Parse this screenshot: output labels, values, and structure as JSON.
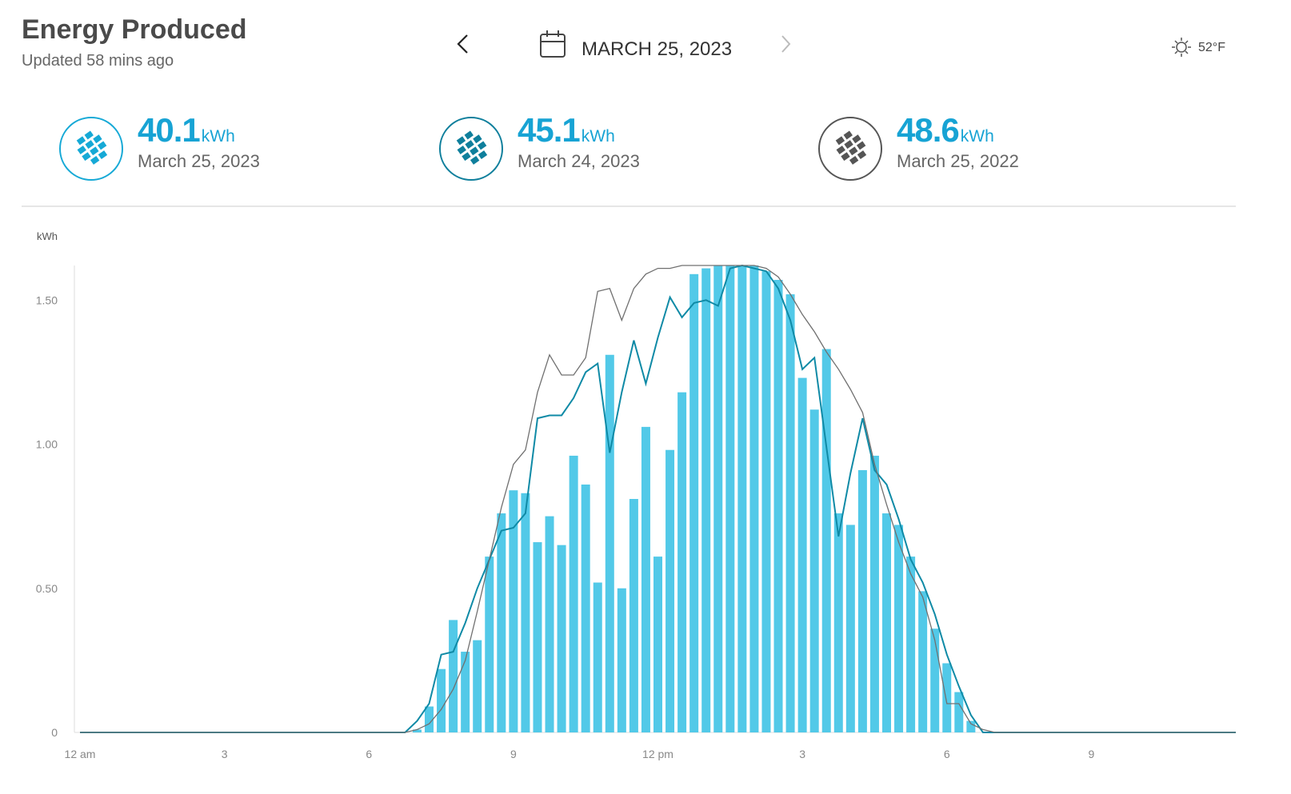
{
  "header": {
    "title": "Energy Produced",
    "subtitle": "Updated 58 mins ago",
    "date": "MARCH 25, 2023",
    "temperature": "52°F"
  },
  "chart_data": {
    "type": "bar",
    "ylabel": "kWh",
    "unit": "kWh",
    "xlim": [
      0,
      24
    ],
    "ylim": [
      0,
      1.62
    ],
    "xticks": [
      {
        "value": 0,
        "label": "12 am"
      },
      3,
      6,
      9,
      {
        "value": 12,
        "label": "12 pm"
      },
      {
        "value": 15,
        "label": "3"
      },
      {
        "value": 18,
        "label": "6"
      },
      {
        "value": 21,
        "label": "9"
      }
    ],
    "yticks": [
      0,
      {
        "value": 0.5,
        "label": "0.50"
      },
      {
        "value": 1,
        "label": "1.00"
      },
      {
        "value": 1.5,
        "label": "1.50"
      }
    ],
    "grid": false,
    "series": [
      {
        "name": "March 25, 2023",
        "type": "bar",
        "color": "#52c9e8",
        "total": 40.1,
        "x": [
          7,
          7.25,
          7.5,
          7.75,
          8,
          8.25,
          8.5,
          8.75,
          9,
          9.25,
          9.5,
          9.75,
          10,
          10.25,
          10.5,
          10.75,
          11,
          11.25,
          11.5,
          11.75,
          12,
          12.25,
          12.5,
          12.75,
          13,
          13.25,
          13.5,
          13.75,
          14,
          14.25,
          14.5,
          14.75,
          15,
          15.25,
          15.5,
          15.75,
          16,
          16.25,
          16.5,
          16.75,
          17,
          17.25,
          17.5,
          17.75,
          18,
          18.25,
          18.5
        ],
        "values": [
          0.01,
          0.09,
          0.22,
          0.39,
          0.28,
          0.32,
          0.61,
          0.76,
          0.84,
          0.83,
          0.66,
          0.75,
          0.65,
          0.96,
          0.86,
          0.52,
          1.31,
          0.5,
          0.81,
          1.06,
          0.61,
          0.98,
          1.18,
          1.59,
          1.61,
          1.62,
          1.62,
          1.62,
          1.62,
          1.6,
          1.57,
          1.52,
          1.23,
          1.12,
          1.33,
          0.76,
          0.72,
          0.91,
          0.96,
          0.76,
          0.72,
          0.61,
          0.49,
          0.36,
          0.24,
          0.14,
          0.04
        ]
      },
      {
        "name": "March 24, 2023",
        "type": "line",
        "color": "#0f8aa6",
        "total": 45.1,
        "x": [
          0,
          6.75,
          7,
          7.25,
          7.5,
          7.75,
          8,
          8.25,
          8.5,
          8.75,
          9,
          9.25,
          9.5,
          9.75,
          10,
          10.25,
          10.5,
          10.75,
          11,
          11.25,
          11.5,
          11.75,
          12,
          12.25,
          12.5,
          12.75,
          13,
          13.25,
          13.5,
          13.75,
          14,
          14.25,
          14.5,
          14.75,
          15,
          15.25,
          15.5,
          15.75,
          16,
          16.25,
          16.5,
          16.75,
          17,
          17.25,
          17.5,
          17.75,
          18,
          18.25,
          18.5,
          18.75,
          19,
          24
        ],
        "values": [
          0,
          0,
          0.04,
          0.1,
          0.27,
          0.28,
          0.38,
          0.5,
          0.6,
          0.7,
          0.71,
          0.76,
          1.09,
          1.1,
          1.1,
          1.16,
          1.25,
          1.28,
          0.97,
          1.18,
          1.36,
          1.21,
          1.37,
          1.51,
          1.44,
          1.49,
          1.5,
          1.48,
          1.61,
          1.62,
          1.61,
          1.6,
          1.54,
          1.43,
          1.26,
          1.3,
          0.99,
          0.68,
          0.9,
          1.09,
          0.91,
          0.86,
          0.74,
          0.6,
          0.52,
          0.41,
          0.27,
          0.16,
          0.06,
          0,
          0,
          0
        ]
      },
      {
        "name": "March 25, 2022",
        "type": "line",
        "color": "#707070",
        "total": 48.6,
        "x": [
          0,
          6.75,
          7,
          7.25,
          7.5,
          7.75,
          8,
          8.25,
          8.5,
          8.75,
          9,
          9.25,
          9.5,
          9.75,
          10,
          10.25,
          10.5,
          10.75,
          11,
          11.25,
          11.5,
          11.75,
          12,
          12.25,
          12.5,
          12.75,
          13,
          13.25,
          13.5,
          13.75,
          14,
          14.25,
          14.5,
          14.75,
          15,
          15.25,
          15.5,
          15.75,
          16,
          16.25,
          16.5,
          16.75,
          17,
          17.25,
          17.5,
          17.75,
          18,
          18.25,
          18.5,
          18.75,
          19,
          24
        ],
        "values": [
          0,
          0,
          0.01,
          0.03,
          0.08,
          0.15,
          0.25,
          0.42,
          0.6,
          0.78,
          0.93,
          0.98,
          1.18,
          1.31,
          1.24,
          1.24,
          1.3,
          1.53,
          1.54,
          1.43,
          1.54,
          1.59,
          1.61,
          1.61,
          1.62,
          1.62,
          1.62,
          1.62,
          1.62,
          1.62,
          1.62,
          1.61,
          1.58,
          1.52,
          1.45,
          1.39,
          1.32,
          1.26,
          1.19,
          1.11,
          0.93,
          0.79,
          0.66,
          0.55,
          0.47,
          0.32,
          0.1,
          0.1,
          0.03,
          0.01,
          0,
          0
        ]
      }
    ]
  }
}
